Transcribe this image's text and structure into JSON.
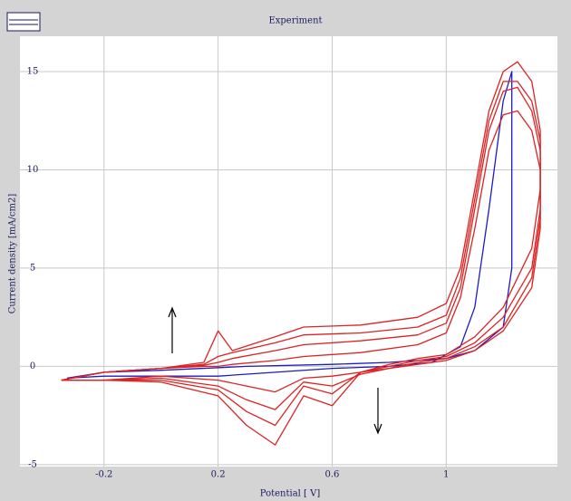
{
  "chart_data": {
    "type": "line",
    "title": "Experiment",
    "x_label": "Potential [ V]",
    "y_label": "Current density [mA/cm2]",
    "xlim": [
      -0.495,
      1.39
    ],
    "ylim": [
      -5.1,
      16.8
    ],
    "xticks": [
      -0.2,
      0.2,
      0.6,
      1
    ],
    "yticks": [
      -5,
      0,
      5,
      10,
      15
    ],
    "grid": true,
    "series": [
      {
        "color": "#1c1cc0",
        "x": [
          -0.33,
          -0.2,
          0,
          0.2,
          0.4,
          0.6,
          0.8,
          0.95,
          1.05,
          1.1,
          1.15,
          1.2,
          1.23,
          1.23,
          1.2,
          1.1,
          1.0,
          0.8,
          0.6,
          0.3,
          0,
          -0.2,
          -0.33
        ],
        "values": [
          -0.6,
          -0.5,
          -0.5,
          -0.5,
          -0.3,
          -0.1,
          0,
          0.2,
          1,
          3,
          8,
          13.5,
          15,
          5,
          2,
          0.8,
          0.4,
          0.2,
          0.1,
          0,
          -0.2,
          -0.3,
          -0.6
        ]
      },
      {
        "color": "#dd2222",
        "x": [
          -0.35,
          -0.2,
          0,
          0.15,
          0.2,
          0.25,
          0.4,
          0.5,
          0.7,
          0.9,
          1.0,
          1.05,
          1.1,
          1.15,
          1.2,
          1.25,
          1.3,
          1.33,
          1.33,
          1.3,
          1.2,
          1.1,
          1.0,
          0.9,
          0.8,
          0.7,
          0.6,
          0.5,
          0.4,
          0.3,
          0.2,
          0,
          -0.2,
          -0.35
        ],
        "values": [
          -0.7,
          -0.3,
          -0.1,
          0.2,
          1.8,
          0.8,
          1.5,
          2.0,
          2.1,
          2.5,
          3.2,
          5,
          9,
          13,
          15,
          15.5,
          14.5,
          12,
          9,
          6,
          3,
          1.5,
          0.6,
          0.4,
          0.1,
          -0.3,
          -2,
          -1.5,
          -4,
          -3,
          -1.5,
          -0.8,
          -0.7,
          -0.7
        ]
      },
      {
        "color": "#dd2222",
        "x": [
          -0.35,
          -0.2,
          0,
          0.15,
          0.2,
          0.25,
          0.4,
          0.5,
          0.7,
          0.9,
          1.0,
          1.05,
          1.1,
          1.15,
          1.2,
          1.25,
          1.3,
          1.33,
          1.33,
          1.3,
          1.2,
          1.1,
          1.0,
          0.9,
          0.8,
          0.7,
          0.6,
          0.5,
          0.4,
          0.3,
          0.2,
          0,
          -0.2,
          -0.35
        ],
        "values": [
          -0.7,
          -0.3,
          -0.1,
          0.1,
          0.5,
          0.7,
          1.2,
          1.6,
          1.7,
          2.0,
          2.6,
          4.5,
          8.5,
          12.5,
          14.5,
          14.5,
          13.5,
          11.5,
          8,
          5,
          2.5,
          1.2,
          0.5,
          0.3,
          0,
          -0.3,
          -1.4,
          -1.0,
          -3.0,
          -2.3,
          -1.2,
          -0.7,
          -0.7,
          -0.7
        ]
      },
      {
        "color": "#dd2222",
        "x": [
          -0.35,
          -0.2,
          0,
          0.15,
          0.2,
          0.25,
          0.4,
          0.5,
          0.7,
          0.9,
          1.0,
          1.05,
          1.1,
          1.15,
          1.2,
          1.25,
          1.3,
          1.33,
          1.33,
          1.3,
          1.2,
          1.1,
          1.0,
          0.9,
          0.8,
          0.7,
          0.6,
          0.5,
          0.4,
          0.3,
          0.2,
          0,
          -0.2,
          -0.35
        ],
        "values": [
          -0.7,
          -0.3,
          -0.1,
          0.05,
          0.2,
          0.4,
          0.8,
          1.1,
          1.3,
          1.6,
          2.2,
          4,
          8,
          12,
          14,
          14.2,
          13,
          11,
          7.5,
          4.5,
          2,
          1,
          0.4,
          0.2,
          -0.1,
          -0.4,
          -1.0,
          -0.8,
          -2.2,
          -1.7,
          -1.0,
          -0.6,
          -0.7,
          -0.7
        ]
      },
      {
        "color": "#dd2222",
        "x": [
          -0.35,
          -0.2,
          0,
          0.15,
          0.2,
          0.25,
          0.4,
          0.5,
          0.7,
          0.9,
          1.0,
          1.05,
          1.1,
          1.15,
          1.2,
          1.25,
          1.3,
          1.33,
          1.33,
          1.3,
          1.2,
          1.1,
          1.0,
          0.9,
          0.8,
          0.7,
          0.6,
          0.5,
          0.4,
          0.3,
          0.2,
          0,
          -0.2,
          -0.35
        ],
        "values": [
          -0.7,
          -0.3,
          -0.1,
          0,
          0,
          0.1,
          0.3,
          0.5,
          0.7,
          1.1,
          1.7,
          3.5,
          7,
          11,
          12.8,
          13,
          12,
          10,
          7,
          4,
          1.8,
          0.8,
          0.3,
          0.1,
          -0.1,
          -0.3,
          -0.5,
          -0.6,
          -1.3,
          -1.0,
          -0.7,
          -0.5,
          -0.7,
          -0.7
        ]
      }
    ]
  }
}
